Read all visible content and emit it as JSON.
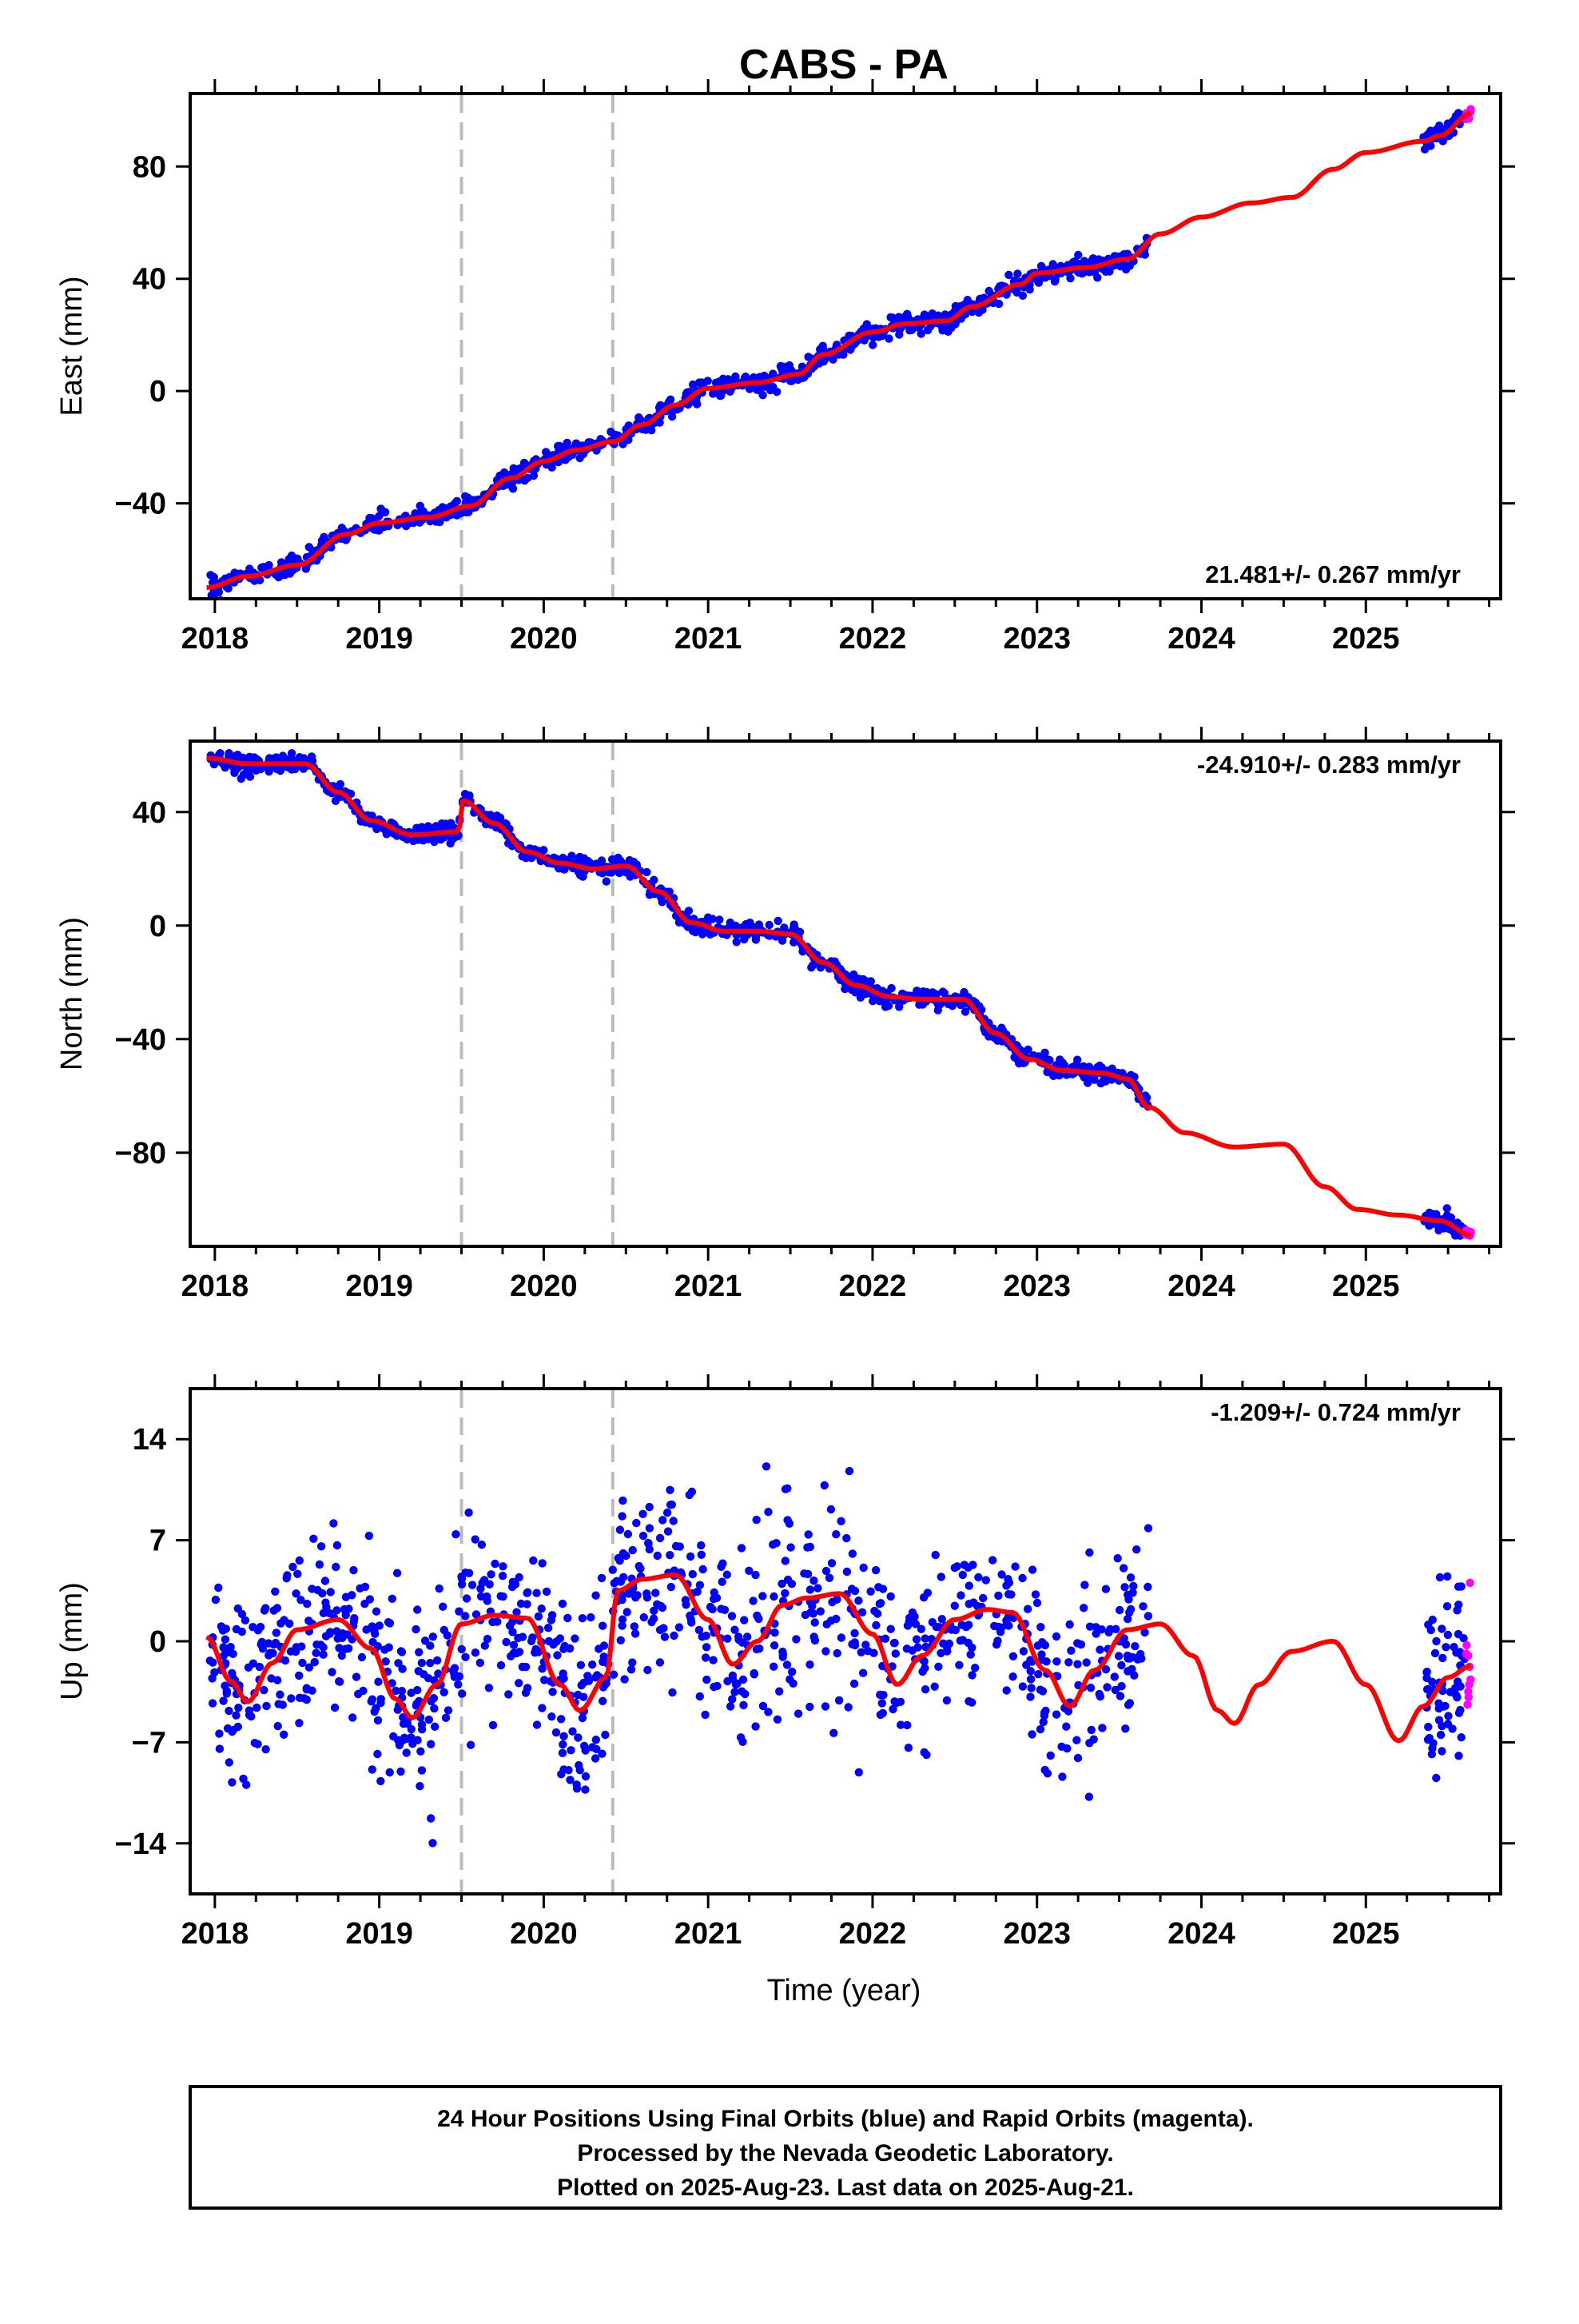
{
  "title": "CABS - PA",
  "xlabel": "Time (year)",
  "footer": {
    "lines": [
      "24 Hour Positions Using Final Orbits (blue) and Rapid Orbits (magenta).",
      "Processed by the Nevada Geodetic Laboratory.",
      "Plotted on 2025-Aug-23. Last data on 2025-Aug-21."
    ]
  },
  "colors": {
    "final_orbit_points": "#0000ff",
    "rapid_orbit_points": "#ff00ff",
    "model_fit": "#ff0000",
    "event_lines": "#bbbbbb"
  },
  "chart_data": [
    {
      "type": "scatter",
      "name": "east",
      "ylabel": "East (mm)",
      "rate": "21.481+/- 0.267 mm/yr",
      "xlim": [
        2017.85,
        2025.82
      ],
      "ylim": [
        -74,
        106
      ],
      "xticks": [
        2018,
        2019,
        2020,
        2021,
        2022,
        2023,
        2024,
        2025
      ],
      "yticks": [
        -40,
        0,
        40,
        80
      ],
      "event_lines": [
        2019.5,
        2020.42
      ],
      "data_span": [
        2017.97,
        2023.68
      ],
      "rapid_span": [
        2025.35,
        2025.64
      ],
      "fit": [
        [
          2017.95,
          -70
        ],
        [
          2018.2,
          -66
        ],
        [
          2018.5,
          -62
        ],
        [
          2018.8,
          -51
        ],
        [
          2019.0,
          -47
        ],
        [
          2019.3,
          -45
        ],
        [
          2019.55,
          -41
        ],
        [
          2019.8,
          -31
        ],
        [
          2020.0,
          -25
        ],
        [
          2020.2,
          -21
        ],
        [
          2020.42,
          -18
        ],
        [
          2020.6,
          -12
        ],
        [
          2020.8,
          -5
        ],
        [
          2021.0,
          1
        ],
        [
          2021.3,
          3
        ],
        [
          2021.55,
          6
        ],
        [
          2021.7,
          13
        ],
        [
          2022.0,
          21
        ],
        [
          2022.2,
          24
        ],
        [
          2022.45,
          25
        ],
        [
          2022.6,
          30
        ],
        [
          2022.9,
          38
        ],
        [
          2023.0,
          42
        ],
        [
          2023.3,
          44
        ],
        [
          2023.55,
          47
        ],
        [
          2023.75,
          56
        ],
        [
          2024.0,
          62
        ],
        [
          2024.3,
          67
        ],
        [
          2024.55,
          69
        ],
        [
          2024.8,
          79
        ],
        [
          2025.0,
          85
        ],
        [
          2025.35,
          89
        ],
        [
          2025.45,
          91
        ],
        [
          2025.64,
          99
        ]
      ],
      "noise": 1.6
    },
    {
      "type": "scatter",
      "name": "north",
      "ylabel": "North (mm)",
      "rate": "-24.910+/- 0.283 mm/yr",
      "xlim": [
        2017.85,
        2025.82
      ],
      "ylim": [
        -113,
        65
      ],
      "xticks": [
        2018,
        2019,
        2020,
        2021,
        2022,
        2023,
        2024,
        2025
      ],
      "yticks": [
        -80,
        -40,
        0,
        40
      ],
      "event_lines": [
        2019.5,
        2020.42
      ],
      "data_span": [
        2017.97,
        2023.68
      ],
      "rapid_span": [
        2025.35,
        2025.64
      ],
      "fit": [
        [
          2017.95,
          59
        ],
        [
          2018.2,
          57
        ],
        [
          2018.55,
          57
        ],
        [
          2018.75,
          47
        ],
        [
          2018.95,
          37
        ],
        [
          2019.2,
          32
        ],
        [
          2019.48,
          33
        ],
        [
          2019.51,
          44
        ],
        [
          2019.7,
          36
        ],
        [
          2019.9,
          26
        ],
        [
          2020.1,
          22
        ],
        [
          2020.3,
          20
        ],
        [
          2020.5,
          21
        ],
        [
          2020.7,
          12
        ],
        [
          2020.9,
          1
        ],
        [
          2021.1,
          -2
        ],
        [
          2021.3,
          -2
        ],
        [
          2021.5,
          -3
        ],
        [
          2021.7,
          -13
        ],
        [
          2021.9,
          -21
        ],
        [
          2022.1,
          -25
        ],
        [
          2022.3,
          -26
        ],
        [
          2022.55,
          -26
        ],
        [
          2022.75,
          -38
        ],
        [
          2022.95,
          -47
        ],
        [
          2023.15,
          -51
        ],
        [
          2023.4,
          -52
        ],
        [
          2023.55,
          -54
        ],
        [
          2023.68,
          -64
        ],
        [
          2023.9,
          -73
        ],
        [
          2024.2,
          -78
        ],
        [
          2024.5,
          -77
        ],
        [
          2024.75,
          -92
        ],
        [
          2024.95,
          -100
        ],
        [
          2025.2,
          -102
        ],
        [
          2025.45,
          -104
        ],
        [
          2025.64,
          -109
        ]
      ],
      "noise": 1.6
    },
    {
      "type": "scatter",
      "name": "up",
      "ylabel": "Up (mm)",
      "rate": "-1.209+/- 0.724 mm/yr",
      "xlim": [
        2017.85,
        2025.82
      ],
      "ylim": [
        -17.5,
        17.5
      ],
      "xticks": [
        2018,
        2019,
        2020,
        2021,
        2022,
        2023,
        2024,
        2025
      ],
      "yticks": [
        -14,
        -7,
        0,
        7,
        14
      ],
      "event_lines": [
        2019.5,
        2020.42
      ],
      "data_span": [
        2017.97,
        2023.68
      ],
      "rapid_span": [
        2025.35,
        2025.64
      ],
      "fit": [
        [
          2017.95,
          0.3
        ],
        [
          2018.1,
          -2.8
        ],
        [
          2018.2,
          -4.2
        ],
        [
          2018.35,
          -1.5
        ],
        [
          2018.5,
          0.8
        ],
        [
          2018.75,
          1.5
        ],
        [
          2018.95,
          -0.5
        ],
        [
          2019.1,
          -4
        ],
        [
          2019.2,
          -5.3
        ],
        [
          2019.35,
          -3
        ],
        [
          2019.5,
          1.2
        ],
        [
          2019.7,
          1.8
        ],
        [
          2019.9,
          1.6
        ],
        [
          2020.1,
          -3
        ],
        [
          2020.22,
          -4.8
        ],
        [
          2020.38,
          -2.5
        ],
        [
          2020.45,
          3.5
        ],
        [
          2020.6,
          4.3
        ],
        [
          2020.8,
          4.6
        ],
        [
          2021.0,
          1.5
        ],
        [
          2021.15,
          -1.6
        ],
        [
          2021.3,
          0
        ],
        [
          2021.45,
          2.5
        ],
        [
          2021.6,
          3
        ],
        [
          2021.8,
          3.3
        ],
        [
          2022.0,
          0.5
        ],
        [
          2022.15,
          -3
        ],
        [
          2022.3,
          -1
        ],
        [
          2022.5,
          1.5
        ],
        [
          2022.7,
          2.2
        ],
        [
          2022.85,
          2
        ],
        [
          2023.05,
          -2
        ],
        [
          2023.2,
          -4.5
        ],
        [
          2023.35,
          -2
        ],
        [
          2023.55,
          0.8
        ],
        [
          2023.75,
          1.2
        ],
        [
          2023.95,
          -1
        ],
        [
          2024.1,
          -4.8
        ],
        [
          2024.2,
          -5.7
        ],
        [
          2024.35,
          -3
        ],
        [
          2024.55,
          -0.7
        ],
        [
          2024.8,
          0
        ],
        [
          2025.0,
          -3
        ],
        [
          2025.2,
          -6.9
        ],
        [
          2025.35,
          -4.5
        ],
        [
          2025.5,
          -2.5
        ],
        [
          2025.64,
          -1.7
        ]
      ],
      "noise": 3.2
    }
  ]
}
